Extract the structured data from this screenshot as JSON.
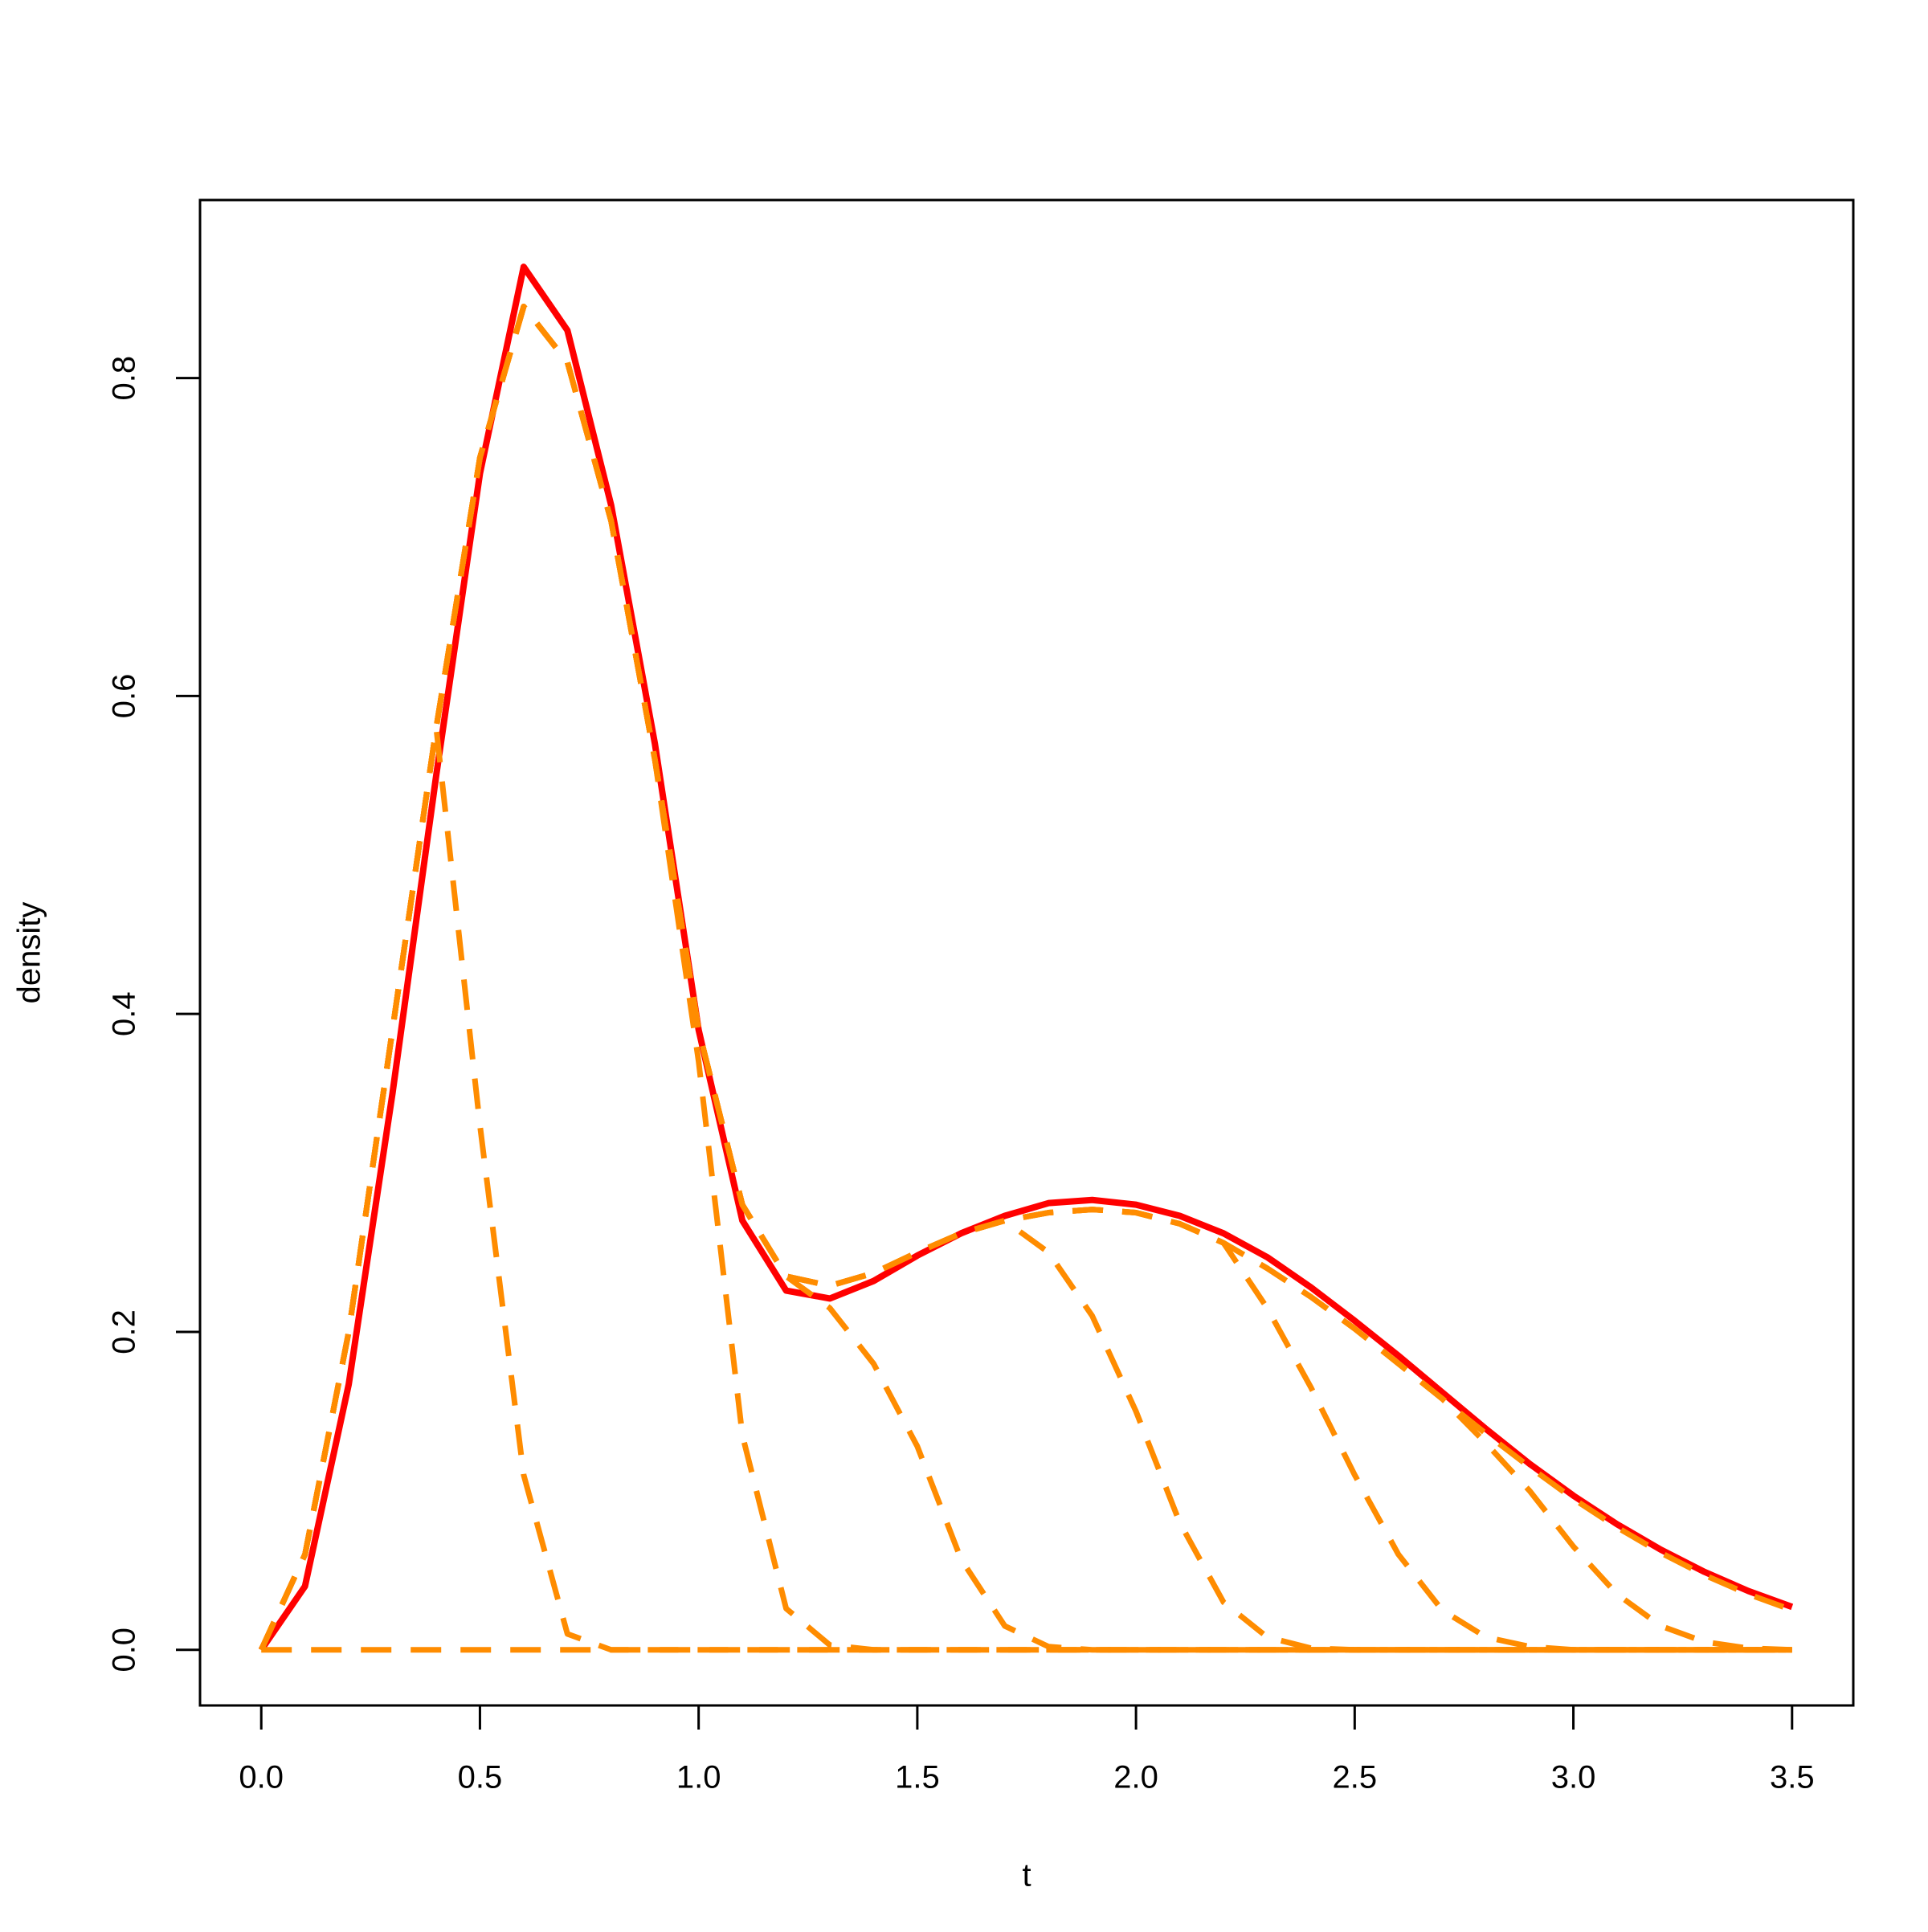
{
  "chart_data": {
    "type": "line",
    "x_label": "t",
    "y_label": "density",
    "x": [
      0,
      0.1,
      0.2,
      0.3,
      0.4,
      0.5,
      0.6,
      0.7,
      0.8,
      0.9,
      1,
      1.1,
      1.2,
      1.3,
      1.4,
      1.5,
      1.6,
      1.7,
      1.8,
      1.9,
      2,
      2.1,
      2.2,
      2.3,
      2.4,
      2.5,
      2.6,
      2.7,
      2.8,
      2.9,
      3,
      3.1,
      3.2,
      3.3,
      3.4,
      3.5
    ],
    "series": [
      {
        "color": "#ff0000",
        "style": "solid",
        "values": [
          0,
          0.04,
          0.167,
          0.35,
          0.55,
          0.74,
          0.87,
          0.83,
          0.72,
          0.57,
          0.39,
          0.27,
          0.226,
          0.221,
          0.232,
          0.248,
          0.262,
          0.273,
          0.281,
          0.283,
          0.28,
          0.273,
          0.262,
          0.247,
          0.228,
          0.207,
          0.185,
          0.162,
          0.139,
          0.117,
          0.097,
          0.079,
          0.063,
          0.049,
          0.037,
          0.027
        ]
      },
      {
        "color": "#ff8c00",
        "style": "dashed",
        "values": [
          0,
          0.06,
          0.2,
          0.39,
          0.58,
          0.33,
          0.11,
          0.01,
          0,
          0,
          0,
          0,
          0,
          0,
          0,
          0,
          0,
          0,
          0,
          0,
          0,
          0,
          0,
          0,
          0,
          0,
          0,
          0,
          0,
          0,
          0,
          0,
          0,
          0,
          0,
          0
        ]
      },
      {
        "color": "#ff8c00",
        "style": "dashed",
        "values": [
          0,
          0.06,
          0.2,
          0.39,
          0.58,
          0.75,
          0.845,
          0.81,
          0.71,
          0.56,
          0.37,
          0.135,
          0.026,
          0.003,
          0,
          0,
          0,
          0,
          0,
          0,
          0,
          0,
          0,
          0,
          0,
          0,
          0,
          0,
          0,
          0,
          0,
          0,
          0,
          0,
          0,
          0
        ]
      },
      {
        "color": "#ff8c00",
        "style": "dashed",
        "values": [
          0,
          0.06,
          0.2,
          0.39,
          0.58,
          0.75,
          0.845,
          0.81,
          0.71,
          0.56,
          0.39,
          0.28,
          0.235,
          0.215,
          0.18,
          0.128,
          0.057,
          0.015,
          0.002,
          0,
          0,
          0,
          0,
          0,
          0,
          0,
          0,
          0,
          0,
          0,
          0,
          0,
          0,
          0,
          0,
          0
        ]
      },
      {
        "color": "#ff8c00",
        "style": "dashed",
        "values": [
          0,
          0.06,
          0.2,
          0.39,
          0.58,
          0.75,
          0.845,
          0.81,
          0.71,
          0.56,
          0.39,
          0.28,
          0.235,
          0.229,
          0.237,
          0.25,
          0.262,
          0.27,
          0.25,
          0.21,
          0.15,
          0.08,
          0.03,
          0.008,
          0.001,
          0,
          0,
          0,
          0,
          0,
          0,
          0,
          0,
          0,
          0,
          0
        ]
      },
      {
        "color": "#ff8c00",
        "style": "dashed",
        "values": [
          0,
          0.06,
          0.2,
          0.39,
          0.58,
          0.75,
          0.845,
          0.81,
          0.71,
          0.56,
          0.39,
          0.28,
          0.235,
          0.229,
          0.237,
          0.25,
          0.262,
          0.27,
          0.275,
          0.277,
          0.275,
          0.268,
          0.256,
          0.215,
          0.165,
          0.11,
          0.06,
          0.025,
          0.008,
          0.002,
          0,
          0,
          0,
          0,
          0,
          0
        ]
      },
      {
        "color": "#ff8c00",
        "style": "dashed",
        "values": [
          0,
          0.06,
          0.2,
          0.39,
          0.58,
          0.75,
          0.845,
          0.81,
          0.71,
          0.56,
          0.39,
          0.28,
          0.235,
          0.229,
          0.237,
          0.25,
          0.262,
          0.27,
          0.275,
          0.277,
          0.275,
          0.268,
          0.256,
          0.24,
          0.222,
          0.202,
          0.18,
          0.158,
          0.13,
          0.1,
          0.065,
          0.035,
          0.015,
          0.005,
          0.001,
          0
        ]
      },
      {
        "color": "#ff8c00",
        "style": "dashed",
        "values": [
          0,
          0.06,
          0.2,
          0.39,
          0.58,
          0.75,
          0.845,
          0.81,
          0.71,
          0.56,
          0.39,
          0.28,
          0.235,
          0.229,
          0.237,
          0.25,
          0.262,
          0.27,
          0.275,
          0.277,
          0.275,
          0.268,
          0.256,
          0.24,
          0.222,
          0.202,
          0.18,
          0.158,
          0.136,
          0.115,
          0.095,
          0.077,
          0.061,
          0.047,
          0.035,
          0.025
        ]
      },
      {
        "color": "#ff8c00",
        "style": "dashed",
        "values": [
          0,
          0,
          0,
          0,
          0,
          0,
          0,
          0,
          0,
          0,
          0,
          0,
          0,
          0,
          0,
          0,
          0,
          0,
          0,
          0,
          0,
          0,
          0,
          0,
          0,
          0,
          0,
          0,
          0,
          0,
          0,
          0,
          0,
          0,
          0,
          0
        ]
      }
    ],
    "xlim": [
      -0.14,
      3.64
    ],
    "ylim": [
      -0.035,
      0.912
    ],
    "xticks": [
      {
        "value": 0,
        "label": "0.0"
      },
      0.5,
      {
        "value": 1,
        "label": "1.0"
      },
      1.5,
      {
        "value": 2,
        "label": "2.0"
      },
      2.5,
      {
        "value": 3,
        "label": "3.0"
      },
      3.5
    ],
    "yticks": [
      {
        "value": 0,
        "label": "0.0"
      },
      0.2,
      0.4,
      0.6,
      0.8
    ],
    "grid": false
  }
}
